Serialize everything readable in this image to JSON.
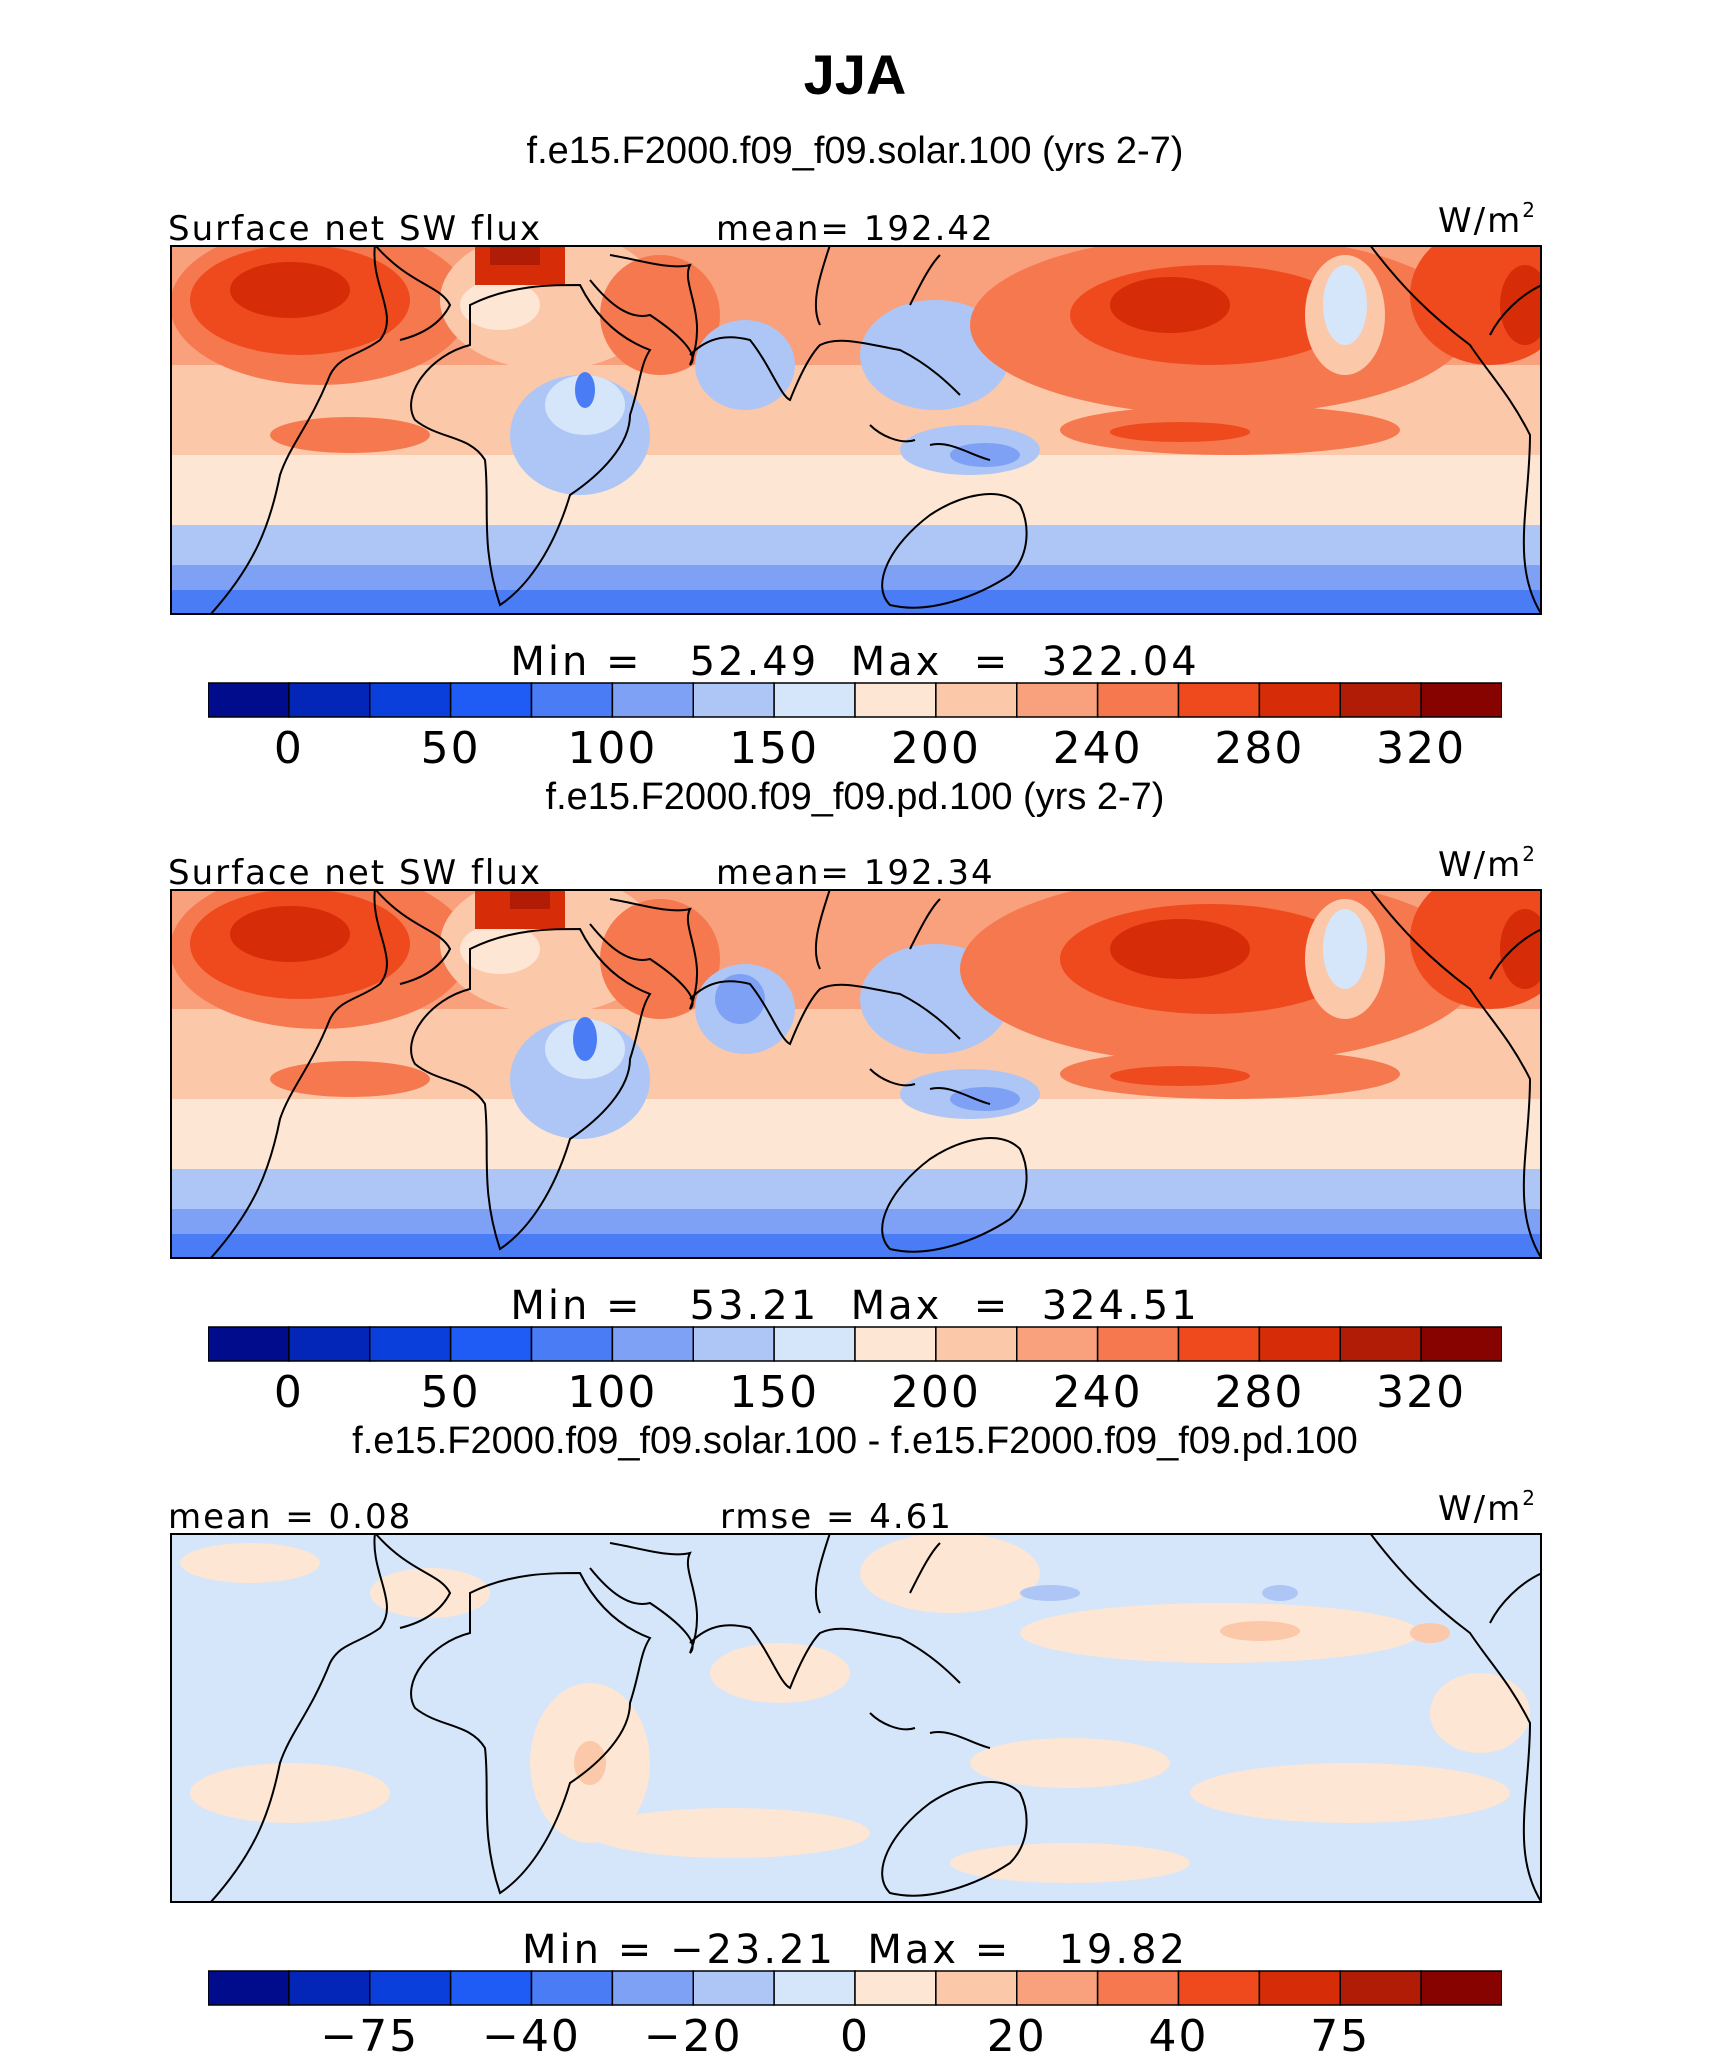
{
  "title": "JJA",
  "colors": {
    "palette": [
      "#000c8b",
      "#0426b8",
      "#0a3fdc",
      "#1e5cf5",
      "#4a7cf5",
      "#7ea1f5",
      "#aec6f5",
      "#d5e5fa",
      "#fde6d4",
      "#fcc8aa",
      "#f9a07d",
      "#f6784e",
      "#ee4a1e",
      "#d62c08",
      "#b01c06",
      "#870300"
    ],
    "coast": "#000000"
  },
  "panels": [
    {
      "case_title": "f.e15.F2000.f09_f09.solar.100 (yrs 2-7)",
      "left_label": "Surface net SW flux",
      "center_label": "mean= 192.42",
      "units": "W/m",
      "units_sup": "2",
      "min_max": "Min =   52.49  Max  =  322.04",
      "colorbar_ticks": [
        "0",
        "50",
        "100",
        "150",
        "200",
        "240",
        "280",
        "320"
      ]
    },
    {
      "case_title": "f.e15.F2000.f09_f09.pd.100 (yrs 2-7)",
      "left_label": "Surface net SW flux",
      "center_label": "mean= 192.34",
      "units": "W/m",
      "units_sup": "2",
      "min_max": "Min =   53.21  Max  =  324.51",
      "colorbar_ticks": [
        "0",
        "50",
        "100",
        "150",
        "200",
        "240",
        "280",
        "320"
      ]
    },
    {
      "case_title": "f.e15.F2000.f09_f09.solar.100 - f.e15.F2000.f09_f09.pd.100",
      "left_label": "mean =   0.08",
      "center_label": "rmse =   4.61",
      "units": "W/m",
      "units_sup": "2",
      "min_max": "Min = −23.21  Max =   19.82",
      "colorbar_ticks": [
        "−75",
        "−40",
        "−20",
        "0",
        "20",
        "40",
        "75"
      ]
    }
  ],
  "chart_data": [
    {
      "type": "heatmap",
      "title": "f.e15.F2000.f09_f09.solar.100 (yrs 2-7)",
      "variable": "Surface net SW flux",
      "units": "W/m2",
      "mean": 192.42,
      "min": 52.49,
      "max": 322.04,
      "colorbar_levels": 16,
      "colorbar_tick_labels": [
        0,
        50,
        100,
        150,
        200,
        240,
        280,
        320
      ]
    },
    {
      "type": "heatmap",
      "title": "f.e15.F2000.f09_f09.pd.100 (yrs 2-7)",
      "variable": "Surface net SW flux",
      "units": "W/m2",
      "mean": 192.34,
      "min": 53.21,
      "max": 324.51,
      "colorbar_levels": 16,
      "colorbar_tick_labels": [
        0,
        50,
        100,
        150,
        200,
        240,
        280,
        320
      ]
    },
    {
      "type": "heatmap",
      "title": "f.e15.F2000.f09_f09.solar.100 - f.e15.F2000.f09_f09.pd.100",
      "units": "W/m2",
      "mean": 0.08,
      "rmse": 4.61,
      "min": -23.21,
      "max": 19.82,
      "colorbar_levels": 16,
      "colorbar_tick_labels": [
        -75,
        -40,
        -20,
        0,
        20,
        40,
        75
      ]
    }
  ]
}
